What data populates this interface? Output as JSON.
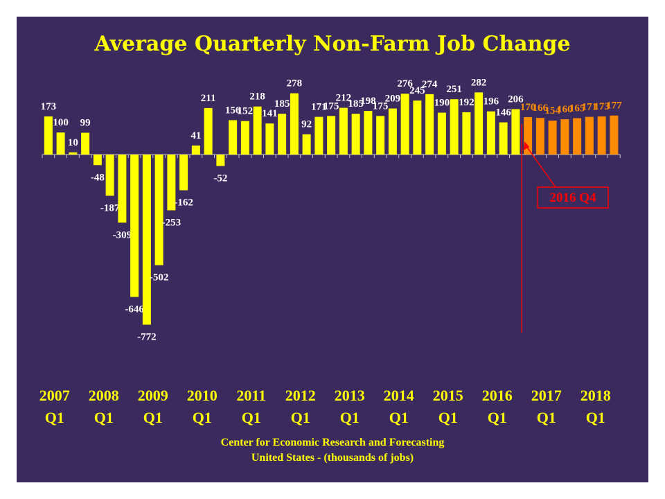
{
  "chart_data": {
    "type": "bar",
    "title": "Average Quarterly Non-Farm Job Change",
    "colors": {
      "background": "#3a2a5d",
      "actual": "#ffff00",
      "forecast": "#ff8c00",
      "annotation": "#ff0000"
    },
    "x_tick_labels": [
      {
        "year": "2007",
        "quarter": "Q1",
        "index": 0
      },
      {
        "year": "2008",
        "quarter": "Q1",
        "index": 4
      },
      {
        "year": "2009",
        "quarter": "Q1",
        "index": 8
      },
      {
        "year": "2010",
        "quarter": "Q1",
        "index": 12
      },
      {
        "year": "2011",
        "quarter": "Q1",
        "index": 16
      },
      {
        "year": "2012",
        "quarter": "Q1",
        "index": 20
      },
      {
        "year": "2013",
        "quarter": "Q1",
        "index": 24
      },
      {
        "year": "2014",
        "quarter": "Q1",
        "index": 28
      },
      {
        "year": "2015",
        "quarter": "Q1",
        "index": 32
      },
      {
        "year": "2016",
        "quarter": "Q1",
        "index": 36
      },
      {
        "year": "2017",
        "quarter": "Q1",
        "index": 40
      },
      {
        "year": "2018",
        "quarter": "Q1",
        "index": 44
      }
    ],
    "series": [
      {
        "values": [
          173,
          100,
          10,
          99,
          -48,
          -187,
          -309,
          -646,
          -772,
          -502,
          -253,
          -162,
          41,
          211,
          -52,
          156,
          152,
          218,
          141,
          185,
          278,
          92,
          171,
          175,
          212,
          185,
          198,
          175,
          209,
          276,
          245,
          274,
          190,
          251,
          192,
          282,
          196,
          146,
          206
        ]
      },
      {
        "values": [
          170,
          166,
          154,
          160,
          165,
          171,
          173,
          177
        ]
      }
    ],
    "ylim": [
      -840,
      320
    ],
    "annotation": {
      "label": "2016 Q4",
      "after_index": 38
    }
  },
  "footer": {
    "line1": "Center for Economic Research and Forecasting",
    "line2": "United States - (thousands of jobs)"
  }
}
